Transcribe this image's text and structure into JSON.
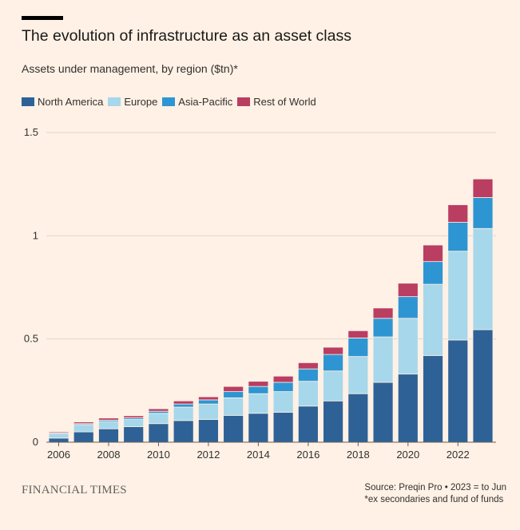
{
  "header": {
    "title": "The evolution of infrastructure as an asset class",
    "subtitle": "Assets under management, by region ($tn)*"
  },
  "legend": {
    "items": [
      {
        "label": "North America",
        "color": "#2E6296"
      },
      {
        "label": "Europe",
        "color": "#A7D7EA"
      },
      {
        "label": "Asia-Pacific",
        "color": "#2E95D3"
      },
      {
        "label": "Rest of World",
        "color": "#BA3D62"
      }
    ]
  },
  "footer": {
    "brand": "FINANCIAL TIMES",
    "source_line1": "Source: Preqin Pro • 2023 = to Jun",
    "source_line2": "*ex secondaries and fund of funds"
  },
  "chart_data": {
    "type": "bar",
    "stacked": true,
    "title": "The evolution of infrastructure as an asset class",
    "ylabel": "Assets under management, by region ($tn)*",
    "xlabel": "",
    "ylim": [
      0,
      1.5
    ],
    "y_ticks": [
      0,
      0.5,
      1,
      1.5
    ],
    "y_tick_labels": [
      "0",
      "0.5",
      "1",
      "1.5"
    ],
    "x_tick_labels": [
      "2006",
      "2008",
      "2010",
      "2012",
      "2014",
      "2016",
      "2018",
      "2020",
      "2022"
    ],
    "categories": [
      "2006",
      "2007",
      "2008",
      "2009",
      "2010",
      "2011",
      "2012",
      "2013",
      "2014",
      "2015",
      "2016",
      "2017",
      "2018",
      "2019",
      "2020",
      "2021",
      "2022",
      "2023"
    ],
    "series": [
      {
        "name": "North America",
        "color": "#2E6296",
        "values": [
          0.02,
          0.05,
          0.065,
          0.075,
          0.09,
          0.105,
          0.11,
          0.13,
          0.14,
          0.145,
          0.175,
          0.2,
          0.235,
          0.29,
          0.33,
          0.42,
          0.495,
          0.545
        ]
      },
      {
        "name": "Europe",
        "color": "#A7D7EA",
        "values": [
          0.02,
          0.035,
          0.035,
          0.035,
          0.05,
          0.065,
          0.075,
          0.085,
          0.095,
          0.1,
          0.12,
          0.145,
          0.18,
          0.22,
          0.27,
          0.345,
          0.43,
          0.49
        ]
      },
      {
        "name": "Asia-Pacific",
        "color": "#2E95D3",
        "values": [
          0.005,
          0.005,
          0.007,
          0.008,
          0.01,
          0.015,
          0.02,
          0.03,
          0.035,
          0.045,
          0.06,
          0.08,
          0.09,
          0.09,
          0.105,
          0.11,
          0.14,
          0.15
        ]
      },
      {
        "name": "Rest of World",
        "color": "#BA3D62",
        "values": [
          0.005,
          0.008,
          0.01,
          0.01,
          0.012,
          0.015,
          0.015,
          0.025,
          0.025,
          0.03,
          0.03,
          0.035,
          0.035,
          0.05,
          0.065,
          0.08,
          0.085,
          0.09
        ]
      }
    ]
  }
}
